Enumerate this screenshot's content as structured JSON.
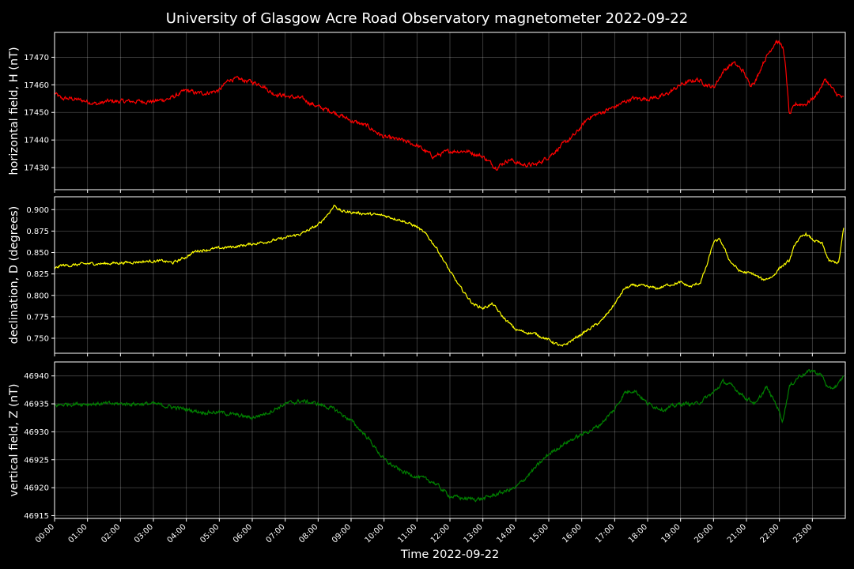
{
  "chart_data": {
    "type": "line",
    "title": "University of Glasgow Acre Road Observatory magnetometer 2022-09-22",
    "xlabel": "Time 2022-09-22",
    "xlim_hours": [
      0,
      24
    ],
    "x_tick_labels": [
      "00:00",
      "01:00",
      "02:00",
      "03:00",
      "04:00",
      "05:00",
      "06:00",
      "07:00",
      "08:00",
      "09:00",
      "10:00",
      "11:00",
      "12:00",
      "13:00",
      "14:00",
      "15:00",
      "16:00",
      "17:00",
      "18:00",
      "19:00",
      "20:00",
      "21:00",
      "22:00",
      "23:00"
    ],
    "grid": true,
    "panels": [
      {
        "ylabel": "horizontal field, H (nT)",
        "color": "#ff0000",
        "ylim": [
          17422,
          17479
        ],
        "y_ticks": [
          17430,
          17440,
          17450,
          17460,
          17470
        ],
        "y_tick_labels": [
          "17430",
          "17440",
          "17450",
          "17460",
          "17470"
        ],
        "noise": 1.2,
        "x": [
          0,
          0.2,
          0.5,
          1,
          1.3,
          1.6,
          2,
          2.5,
          3,
          3.5,
          4,
          4.3,
          4.6,
          5,
          5.3,
          5.6,
          6,
          6.3,
          6.6,
          7,
          7.5,
          8,
          8.5,
          9,
          9.5,
          10,
          10.5,
          11,
          11.5,
          12,
          12.5,
          13,
          13.4,
          13.8,
          14.2,
          14.6,
          15,
          15.4,
          15.8,
          16.2,
          16.6,
          17,
          17.5,
          18,
          18.5,
          19,
          19.5,
          19.8,
          20,
          20.3,
          20.6,
          20.9,
          21.1,
          21.3,
          21.5,
          21.7,
          21.9,
          22.1,
          22.2,
          22.3,
          22.5,
          22.8,
          23.1,
          23.4,
          23.7,
          23.95
        ],
        "y": [
          17457,
          17455,
          17455,
          17454,
          17453,
          17454,
          17454,
          17454,
          17454,
          17455,
          17458,
          17457,
          17457,
          17458,
          17462,
          17462,
          17461,
          17460,
          17457,
          17456,
          17455,
          17452,
          17450,
          17447,
          17445,
          17441,
          17440,
          17438,
          17434,
          17436,
          17436,
          17434,
          17430,
          17433,
          17431,
          17431,
          17434,
          17438,
          17442,
          17448,
          17450,
          17452,
          17455,
          17455,
          17456,
          17460,
          17462,
          17460,
          17459,
          17465,
          17468,
          17465,
          17460,
          17462,
          17468,
          17472,
          17476,
          17474,
          17465,
          17449,
          17453,
          17453,
          17456,
          17462,
          17457,
          17455
        ]
      },
      {
        "ylabel": "declination, D (degrees)",
        "color": "#ffff00",
        "ylim": [
          0.7325,
          0.915
        ],
        "y_ticks": [
          0.75,
          0.775,
          0.8,
          0.825,
          0.85,
          0.875,
          0.9
        ],
        "y_tick_labels": [
          "0.750",
          "0.775",
          "0.800",
          "0.825",
          "0.850",
          "0.875",
          "0.900"
        ],
        "noise": 0.0025,
        "x": [
          0,
          0.2,
          0.5,
          1,
          1.5,
          2,
          2.5,
          3,
          3.3,
          3.6,
          4,
          4.3,
          4.6,
          5,
          5.5,
          6,
          6.5,
          7,
          7.5,
          8,
          8.3,
          8.5,
          8.7,
          9,
          9.5,
          10,
          10.5,
          11,
          11.3,
          11.6,
          12,
          12.3,
          12.7,
          13,
          13.3,
          13.6,
          14,
          14.3,
          14.6,
          15,
          15.4,
          15.8,
          16.2,
          16.6,
          17,
          17.3,
          17.6,
          18,
          18.3,
          18.6,
          19,
          19.3,
          19.6,
          19.8,
          20,
          20.2,
          20.5,
          20.8,
          21.2,
          21.5,
          21.8,
          22,
          22.3,
          22.5,
          22.8,
          23,
          23.3,
          23.5,
          23.8,
          23.95
        ],
        "y": [
          0.831,
          0.835,
          0.835,
          0.837,
          0.837,
          0.838,
          0.839,
          0.84,
          0.84,
          0.838,
          0.845,
          0.852,
          0.853,
          0.855,
          0.857,
          0.86,
          0.863,
          0.867,
          0.872,
          0.882,
          0.895,
          0.905,
          0.898,
          0.897,
          0.895,
          0.893,
          0.888,
          0.88,
          0.87,
          0.855,
          0.828,
          0.81,
          0.79,
          0.785,
          0.79,
          0.775,
          0.76,
          0.757,
          0.755,
          0.748,
          0.74,
          0.75,
          0.76,
          0.77,
          0.79,
          0.808,
          0.812,
          0.81,
          0.808,
          0.812,
          0.815,
          0.81,
          0.815,
          0.835,
          0.862,
          0.865,
          0.84,
          0.828,
          0.825,
          0.818,
          0.822,
          0.832,
          0.84,
          0.862,
          0.872,
          0.865,
          0.86,
          0.84,
          0.838,
          0.878
        ]
      },
      {
        "ylabel": "vertical field, Z (nT)",
        "color": "#008000",
        "ylim": [
          46914.5,
          46942.5
        ],
        "y_ticks": [
          46915,
          46920,
          46925,
          46930,
          46935,
          46940
        ],
        "y_tick_labels": [
          "46915",
          "46920",
          "46925",
          "46930",
          "46935",
          "46940"
        ],
        "noise": 0.55,
        "x": [
          0,
          0.5,
          1,
          1.5,
          2,
          2.5,
          3,
          3.5,
          4,
          4.5,
          5,
          5.5,
          6,
          6.5,
          7,
          7.5,
          8,
          8.5,
          9,
          9.5,
          10,
          10.5,
          11,
          11.5,
          12,
          12.5,
          13,
          13.5,
          14,
          14.5,
          15,
          15.5,
          16,
          16.5,
          17,
          17.3,
          17.6,
          18,
          18.5,
          19,
          19.5,
          20,
          20.3,
          20.6,
          21,
          21.3,
          21.6,
          21.9,
          22.1,
          22.3,
          22.6,
          23,
          23.3,
          23.5,
          23.8,
          23.95
        ],
        "y": [
          46934.7,
          46935,
          46935,
          46935,
          46935,
          46935,
          46935,
          46934.5,
          46934,
          46933.5,
          46933.5,
          46933,
          46932.5,
          46933.5,
          46935,
          46935.5,
          46935,
          46934,
          46932,
          46929,
          46925,
          46923,
          46922,
          46921,
          46918.5,
          46918,
          46918,
          46919,
          46920,
          46923,
          46926,
          46928,
          46929.5,
          46931,
          46934,
          46937,
          46937.5,
          46935,
          46934,
          46935,
          46935,
          46937,
          46939,
          46938,
          46936,
          46935,
          46938,
          46935,
          46932,
          46938,
          46940,
          46941,
          46940,
          46937.5,
          46938.5,
          46940
        ]
      }
    ]
  }
}
